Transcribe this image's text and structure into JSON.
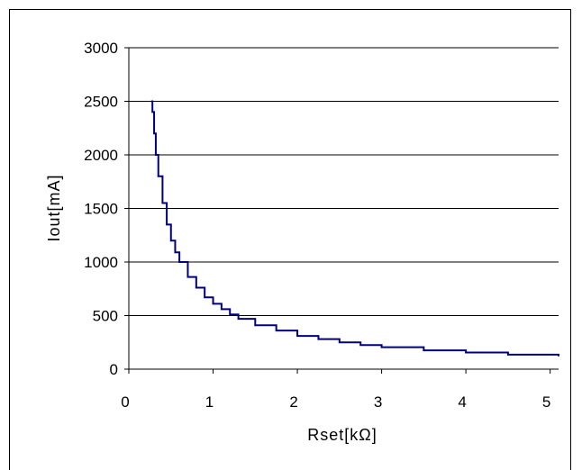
{
  "chart_data": {
    "type": "line",
    "title": "",
    "xlabel": "Rset[kΩ]",
    "ylabel": "Iout[mA]",
    "xlim": [
      0,
      5.1
    ],
    "ylim": [
      0,
      3000
    ],
    "x_ticks": [
      "0",
      "1",
      "2",
      "3",
      "4",
      "5"
    ],
    "y_ticks": [
      "0",
      "500",
      "1000",
      "1500",
      "2000",
      "2500",
      "3000"
    ],
    "grid": "horizontal",
    "legend": "none",
    "line_color": "#00007F",
    "series": [
      {
        "x": [
          0.27,
          0.28,
          0.3,
          0.32,
          0.35,
          0.4,
          0.45,
          0.5,
          0.55,
          0.6,
          0.7,
          0.8,
          0.9,
          1.0,
          1.1,
          1.2,
          1.3,
          1.5,
          1.75,
          2.0,
          2.25,
          2.5,
          2.75,
          3.0,
          3.5,
          4.0,
          4.5,
          5.1
        ],
        "y": [
          2500,
          2400,
          2200,
          2000,
          1800,
          1550,
          1350,
          1200,
          1090,
          1000,
          860,
          760,
          670,
          610,
          560,
          510,
          470,
          410,
          360,
          310,
          280,
          250,
          225,
          205,
          175,
          155,
          135,
          125
        ]
      }
    ]
  }
}
